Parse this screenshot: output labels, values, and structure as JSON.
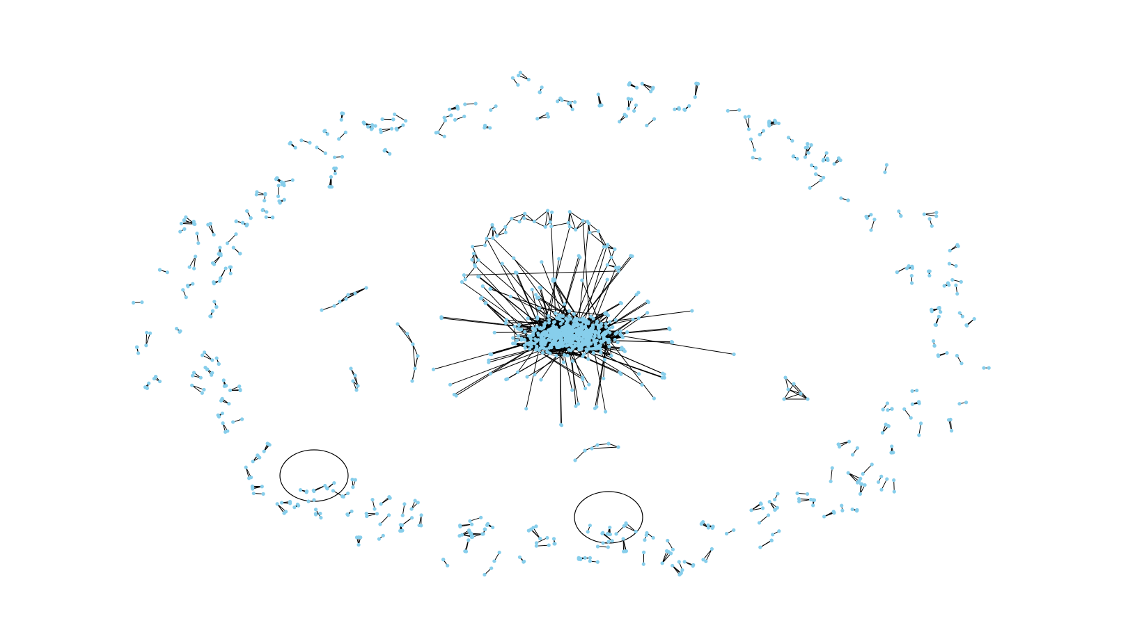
{
  "node_color": "#87ceeb",
  "edge_color": "#000000"
}
